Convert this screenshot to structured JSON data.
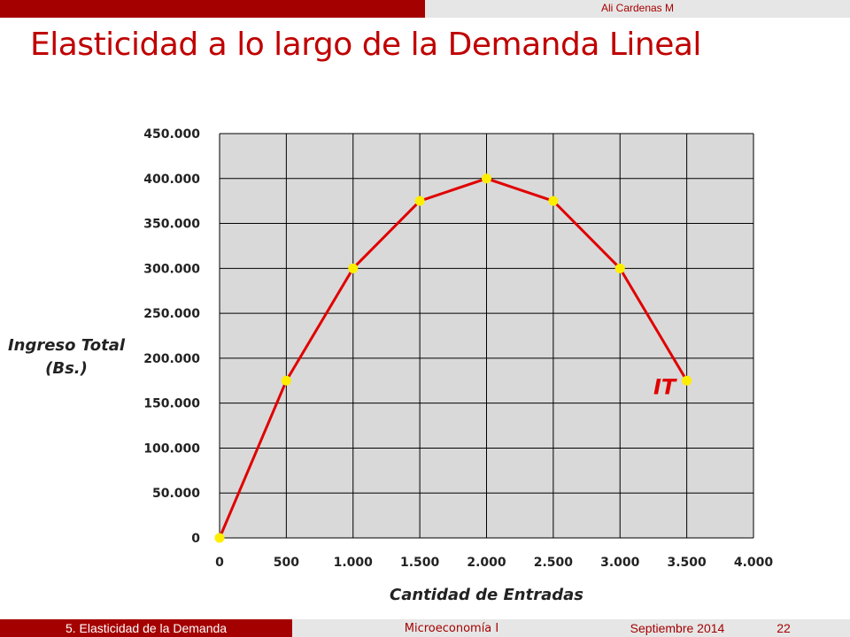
{
  "header": {
    "author": "Ali Cardenas M"
  },
  "slide": {
    "title": "Elasticidad a lo largo de la Demanda Lineal"
  },
  "chart_data": {
    "type": "line",
    "x": [
      0,
      500,
      1000,
      1500,
      2000,
      2500,
      3000,
      3500
    ],
    "series": [
      {
        "name": "IT",
        "values": [
          0,
          175000,
          300000,
          375000,
          400000,
          375000,
          300000,
          175000
        ]
      }
    ],
    "xlabel": "Cantidad de Entradas",
    "ylabel_lines": [
      "Ingreso Total",
      "(Bs.)"
    ],
    "xlim": [
      0,
      4000
    ],
    "ylim": [
      0,
      450000
    ],
    "xticks": [
      0,
      500,
      1000,
      1500,
      2000,
      2500,
      3000,
      3500,
      4000
    ],
    "xtick_labels": [
      "0",
      "500",
      "1.000",
      "1.500",
      "2.000",
      "2.500",
      "3.000",
      "3.500",
      "4.000"
    ],
    "yticks": [
      0,
      50000,
      100000,
      150000,
      200000,
      250000,
      300000,
      350000,
      400000,
      450000
    ],
    "ytick_labels": [
      "0",
      "50.000",
      "100.000",
      "150.000",
      "200.000",
      "250.000",
      "300.000",
      "350.000",
      "400.000",
      "450.000"
    ],
    "grid": true,
    "series_label": {
      "text": "IT",
      "x": 3250,
      "y": 160000
    },
    "colors": {
      "line": "#e00000",
      "marker": "#ffee00",
      "plot_bg": "#d9d9d9",
      "grid": "#000000",
      "series_label": "#e00000"
    }
  },
  "footer": {
    "section": "5. Elasticidad de la Demanda",
    "course": "Microeconomía I",
    "date": "Septiembre 2014",
    "page": "22"
  }
}
